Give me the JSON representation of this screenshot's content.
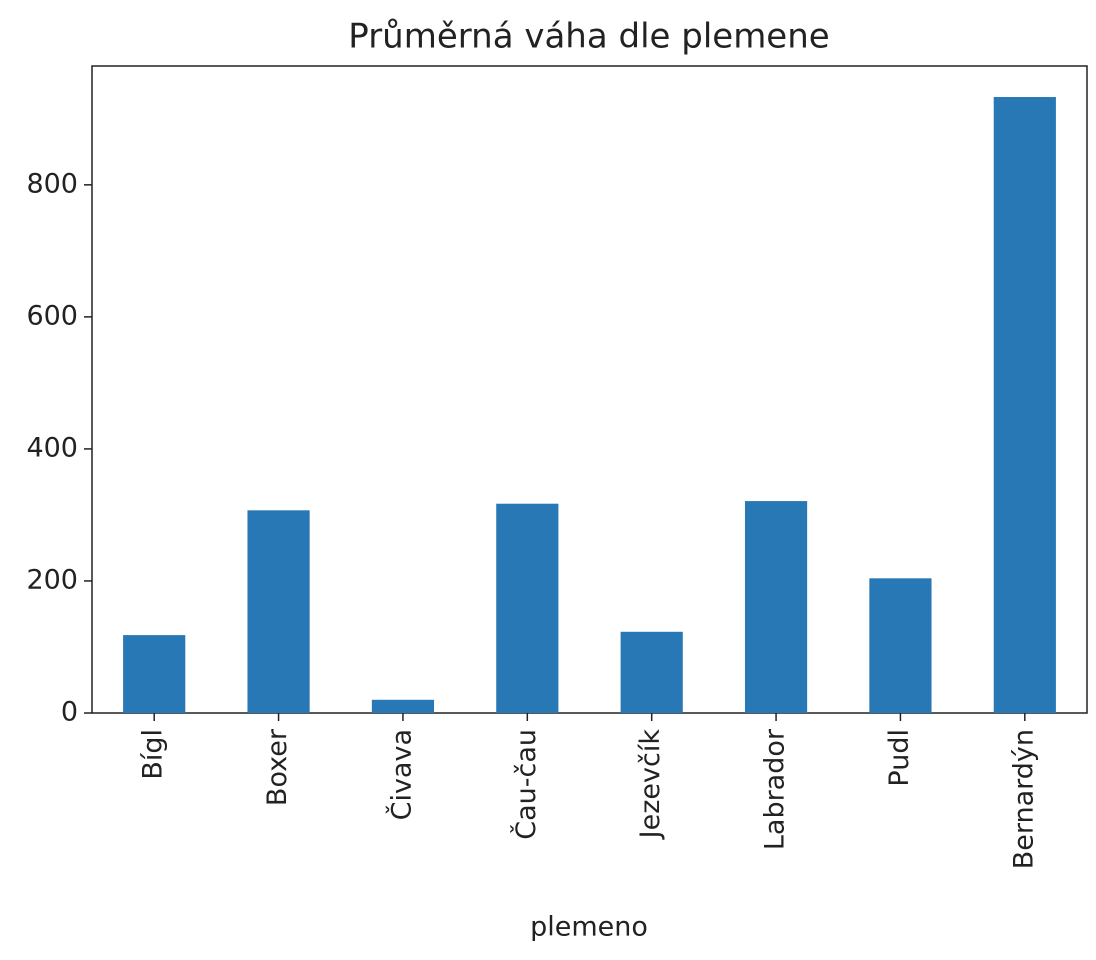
{
  "chart_data": {
    "type": "bar",
    "title": "Průměrná váha dle plemene",
    "x_label": "plemeno",
    "categories": [
      "Bígl",
      "Boxer",
      "Čivava",
      "Čau-čau",
      "Jezevčík",
      "Labrador",
      "Pudl",
      "Bernardýn"
    ],
    "values": [
      118,
      307,
      20,
      317,
      123,
      321,
      204,
      933
    ],
    "color": "#2878b5",
    "ylim": [
      0,
      980
    ],
    "yticks": [
      0,
      200,
      400,
      600,
      800
    ],
    "grid": false
  }
}
